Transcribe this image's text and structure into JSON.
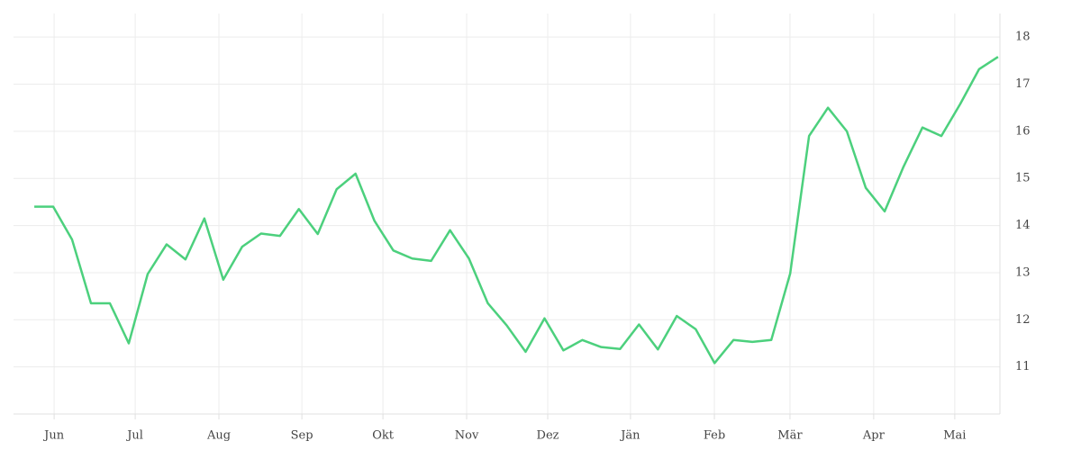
{
  "chart_data": {
    "type": "line",
    "x": [
      0,
      1,
      2,
      3,
      4,
      5,
      6,
      7,
      8,
      9,
      10,
      11,
      12,
      13,
      14,
      15,
      16,
      17,
      18,
      19,
      20,
      21,
      22,
      23,
      24,
      25,
      26,
      27,
      28,
      29,
      30,
      31,
      32,
      33,
      34,
      35,
      36,
      37,
      38,
      39,
      40,
      41,
      42,
      43,
      44,
      45,
      46,
      47,
      48,
      49,
      50,
      51
    ],
    "series": [
      {
        "color": "#4cd07d",
        "values": [
          14.4,
          14.4,
          13.7,
          12.35,
          12.35,
          11.5,
          12.97,
          13.6,
          13.28,
          14.15,
          12.85,
          13.55,
          13.83,
          13.78,
          14.35,
          13.82,
          14.77,
          15.1,
          14.1,
          13.47,
          13.3,
          13.25,
          13.9,
          13.3,
          12.35,
          11.88,
          11.32,
          12.03,
          11.35,
          11.57,
          11.42,
          11.38,
          11.9,
          11.37,
          12.08,
          11.8,
          11.08,
          11.57,
          11.53,
          11.57,
          12.98,
          15.9,
          16.5,
          16.0,
          14.8,
          14.3,
          15.25,
          16.08,
          15.9,
          16.58,
          17.32,
          17.58
        ]
      }
    ],
    "xlim": [
      -1.1,
      51.1
    ],
    "xticks": [
      {
        "value": 1.05,
        "label": "Jun"
      },
      {
        "value": 5.34,
        "label": "Jul"
      },
      {
        "value": 9.77,
        "label": "Aug"
      },
      {
        "value": 14.16,
        "label": "Sep"
      },
      {
        "value": 18.45,
        "label": "Okt"
      },
      {
        "value": 22.88,
        "label": "Nov"
      },
      {
        "value": 27.17,
        "label": "Dez"
      },
      {
        "value": 31.55,
        "label": "Jän"
      },
      {
        "value": 35.99,
        "label": "Feb"
      },
      {
        "value": 39.99,
        "label": "Mär"
      },
      {
        "value": 44.42,
        "label": "Apr"
      },
      {
        "value": 48.71,
        "label": "Mai"
      }
    ],
    "ylim": [
      10,
      18.5
    ],
    "yticks": [
      11,
      12,
      13,
      14,
      15,
      16,
      17,
      18
    ],
    "grid": true
  }
}
